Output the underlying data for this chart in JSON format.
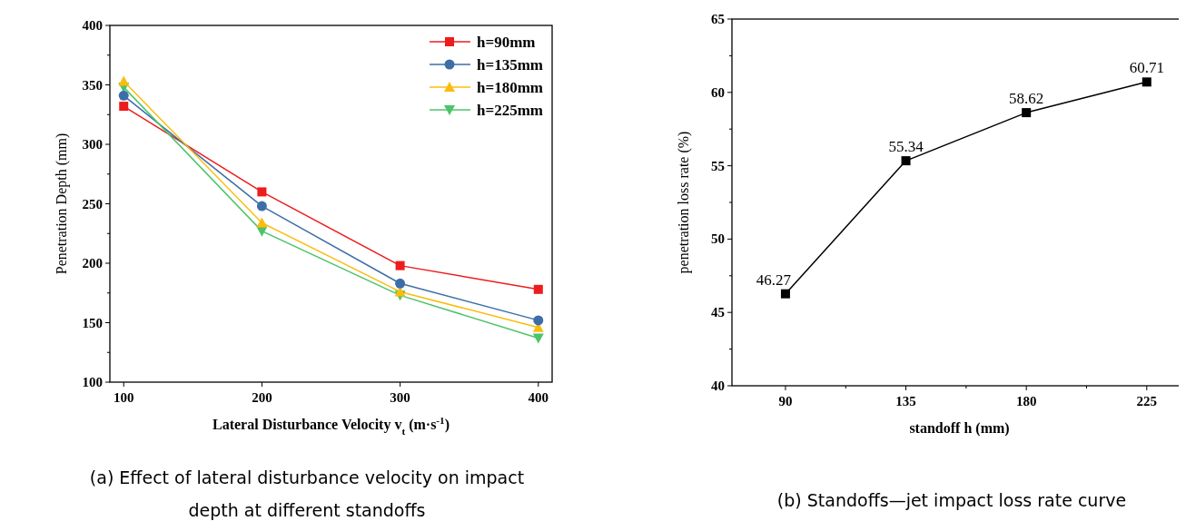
{
  "chart_data": [
    {
      "type": "line",
      "title": "(a) Effect of lateral disturbance velocity on impact depth at different standoffs",
      "xlabel": "Lateral Disturbance Velocity v$_{t}$ (m·s$^{-1}$)",
      "ylabel": "Penetration Depth (mm)",
      "x": [
        100,
        200,
        300,
        400
      ],
      "xlim": [
        90,
        410
      ],
      "xticks": [
        100,
        200,
        300,
        400
      ],
      "ylim": [
        100,
        400
      ],
      "yticks": [
        100,
        {
          "value": 125,
          "label": null
        },
        150,
        {
          "value": 175,
          "label": null
        },
        200,
        {
          "value": 225,
          "label": null
        },
        250,
        {
          "value": 275,
          "label": null
        },
        300,
        {
          "value": 325,
          "label": null
        },
        350,
        {
          "value": 375,
          "label": null
        },
        400
      ],
      "legend": "top right",
      "grid": false,
      "series": [
        {
          "name": "h=90mm",
          "color": "#ee1c1c",
          "marker": "square",
          "values": [
            332,
            260,
            198,
            178
          ]
        },
        {
          "name": "h=135mm",
          "color": "#3d6ea8",
          "marker": "circle",
          "values": [
            341,
            248,
            183,
            152
          ]
        },
        {
          "name": "h=180mm",
          "color": "#fbbc0f",
          "marker": "triangle",
          "values": [
            353,
            234,
            176,
            146
          ]
        },
        {
          "name": "h=225mm",
          "color": "#4cc46a",
          "marker": "triangle-down",
          "values": [
            348,
            227,
            173,
            137
          ]
        }
      ]
    },
    {
      "type": "line",
      "title": "(b) Standoffs—jet impact loss rate curve",
      "xlabel": "standoff h (mm)",
      "ylabel": "penetration loss rate (%)",
      "x": [
        90,
        135,
        180,
        225
      ],
      "xlim": [
        70,
        240
      ],
      "xticks": [
        90,
        {
          "value": 112.5,
          "label": null
        },
        135,
        {
          "value": 157.5,
          "label": null
        },
        180,
        {
          "value": 202.5,
          "label": null
        },
        225
      ],
      "ylim": [
        40,
        65
      ],
      "yticks": [
        40,
        {
          "value": 42.5,
          "label": null
        },
        45,
        {
          "value": 47.5,
          "label": null
        },
        50,
        {
          "value": 52.5,
          "label": null
        },
        55,
        {
          "value": 57.5,
          "label": null
        },
        60,
        {
          "value": 62.5,
          "label": null
        },
        65
      ],
      "grid": false,
      "legend": false,
      "data_labels": true,
      "series": [
        {
          "color": "#000000",
          "marker": "square",
          "values": [
            46.27,
            55.34,
            58.62,
            60.71
          ]
        }
      ]
    }
  ]
}
